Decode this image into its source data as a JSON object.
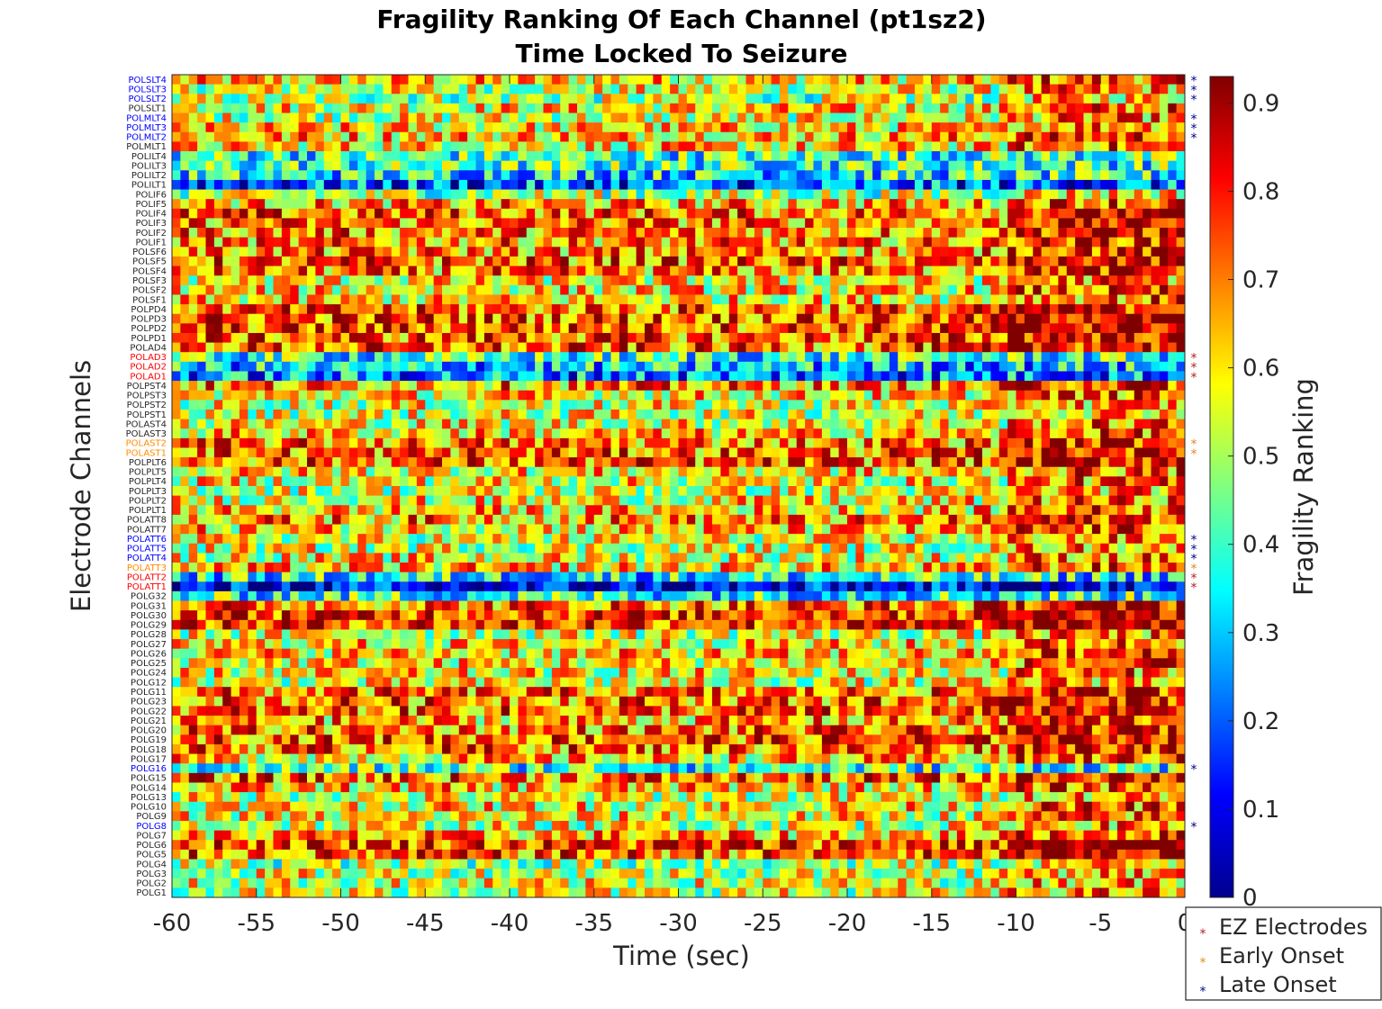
{
  "chart_data": {
    "type": "heatmap",
    "title": "Fragility Ranking Of Each Channel (pt1sz2)",
    "subtitle": "Time Locked To Seizure",
    "xlabel": "Time (sec)",
    "ylabel": "Electrode Channels",
    "xlim": [
      -60,
      0
    ],
    "xticks": [
      "-60",
      "-55",
      "-50",
      "-45",
      "-40",
      "-35",
      "-30",
      "-25",
      "-20",
      "-15",
      "-10",
      "-5",
      "0"
    ],
    "xtick_values": [
      -60,
      -55,
      -50,
      -45,
      -40,
      -35,
      -30,
      -25,
      -20,
      -15,
      -10,
      -5,
      0
    ],
    "colorbar": {
      "label": "Fragility Ranking",
      "range": [
        0,
        0.93
      ],
      "ticks": [
        "0",
        "0.1",
        "0.2",
        "0.3",
        "0.4",
        "0.5",
        "0.6",
        "0.7",
        "0.8",
        "0.9"
      ],
      "tick_values": [
        0,
        0.1,
        0.2,
        0.3,
        0.4,
        0.5,
        0.6,
        0.7,
        0.8,
        0.9
      ],
      "colormap": "jet"
    },
    "channels": [
      {
        "name": "POLSLT4",
        "group": "late"
      },
      {
        "name": "POLSLT3",
        "group": "late"
      },
      {
        "name": "POLSLT2",
        "group": "late"
      },
      {
        "name": "POLSLT1",
        "group": "none"
      },
      {
        "name": "POLMLT4",
        "group": "late"
      },
      {
        "name": "POLMLT3",
        "group": "late"
      },
      {
        "name": "POLMLT2",
        "group": "late"
      },
      {
        "name": "POLMLT1",
        "group": "none"
      },
      {
        "name": "POLILT4",
        "group": "none"
      },
      {
        "name": "POLILT3",
        "group": "none"
      },
      {
        "name": "POLILT2",
        "group": "none"
      },
      {
        "name": "POLILT1",
        "group": "none"
      },
      {
        "name": "POLIF6",
        "group": "none"
      },
      {
        "name": "POLIF5",
        "group": "none"
      },
      {
        "name": "POLIF4",
        "group": "none"
      },
      {
        "name": "POLIF3",
        "group": "none"
      },
      {
        "name": "POLIF2",
        "group": "none"
      },
      {
        "name": "POLIF1",
        "group": "none"
      },
      {
        "name": "POLSF6",
        "group": "none"
      },
      {
        "name": "POLSF5",
        "group": "none"
      },
      {
        "name": "POLSF4",
        "group": "none"
      },
      {
        "name": "POLSF3",
        "group": "none"
      },
      {
        "name": "POLSF2",
        "group": "none"
      },
      {
        "name": "POLSF1",
        "group": "none"
      },
      {
        "name": "POLPD4",
        "group": "none"
      },
      {
        "name": "POLPD3",
        "group": "none"
      },
      {
        "name": "POLPD2",
        "group": "none"
      },
      {
        "name": "POLPD1",
        "group": "none"
      },
      {
        "name": "POLAD4",
        "group": "none"
      },
      {
        "name": "POLAD3",
        "group": "ez"
      },
      {
        "name": "POLAD2",
        "group": "ez"
      },
      {
        "name": "POLAD1",
        "group": "ez"
      },
      {
        "name": "POLPST4",
        "group": "none"
      },
      {
        "name": "POLPST3",
        "group": "none"
      },
      {
        "name": "POLPST2",
        "group": "none"
      },
      {
        "name": "POLPST1",
        "group": "none"
      },
      {
        "name": "POLAST4",
        "group": "none"
      },
      {
        "name": "POLAST3",
        "group": "none"
      },
      {
        "name": "POLAST2",
        "group": "early"
      },
      {
        "name": "POLAST1",
        "group": "early"
      },
      {
        "name": "POLPLT6",
        "group": "none"
      },
      {
        "name": "POLPLT5",
        "group": "none"
      },
      {
        "name": "POLPLT4",
        "group": "none"
      },
      {
        "name": "POLPLT3",
        "group": "none"
      },
      {
        "name": "POLPLT2",
        "group": "none"
      },
      {
        "name": "POLPLT1",
        "group": "none"
      },
      {
        "name": "POLATT8",
        "group": "none"
      },
      {
        "name": "POLATT7",
        "group": "none"
      },
      {
        "name": "POLATT6",
        "group": "late"
      },
      {
        "name": "POLATT5",
        "group": "late"
      },
      {
        "name": "POLATT4",
        "group": "late"
      },
      {
        "name": "POLATT3",
        "group": "early"
      },
      {
        "name": "POLATT2",
        "group": "ez"
      },
      {
        "name": "POLATT1",
        "group": "ez"
      },
      {
        "name": "POLG32",
        "group": "none"
      },
      {
        "name": "POLG31",
        "group": "none"
      },
      {
        "name": "POLG30",
        "group": "none"
      },
      {
        "name": "POLG29",
        "group": "none"
      },
      {
        "name": "POLG28",
        "group": "none"
      },
      {
        "name": "POLG27",
        "group": "none"
      },
      {
        "name": "POLG26",
        "group": "none"
      },
      {
        "name": "POLG25",
        "group": "none"
      },
      {
        "name": "POLG24",
        "group": "none"
      },
      {
        "name": "POLG12",
        "group": "none"
      },
      {
        "name": "POLG11",
        "group": "none"
      },
      {
        "name": "POLG23",
        "group": "none"
      },
      {
        "name": "POLG22",
        "group": "none"
      },
      {
        "name": "POLG21",
        "group": "none"
      },
      {
        "name": "POLG20",
        "group": "none"
      },
      {
        "name": "POLG19",
        "group": "none"
      },
      {
        "name": "POLG18",
        "group": "none"
      },
      {
        "name": "POLG17",
        "group": "none"
      },
      {
        "name": "POLG16",
        "group": "late"
      },
      {
        "name": "POLG15",
        "group": "none"
      },
      {
        "name": "POLG14",
        "group": "none"
      },
      {
        "name": "POLG13",
        "group": "none"
      },
      {
        "name": "POLG10",
        "group": "none"
      },
      {
        "name": "POLG9",
        "group": "none"
      },
      {
        "name": "POLG8",
        "group": "late"
      },
      {
        "name": "POLG7",
        "group": "none"
      },
      {
        "name": "POLG6",
        "group": "none"
      },
      {
        "name": "POLG5",
        "group": "none"
      },
      {
        "name": "POLG4",
        "group": "none"
      },
      {
        "name": "POLG3",
        "group": "none"
      },
      {
        "name": "POLG2",
        "group": "none"
      },
      {
        "name": "POLG1",
        "group": "none"
      }
    ],
    "channel_mean_fragility": {
      "POLSLT4": 0.62,
      "POLSLT3": 0.55,
      "POLSLT2": 0.5,
      "POLSLT1": 0.6,
      "POLMLT4": 0.55,
      "POLMLT3": 0.6,
      "POLMLT2": 0.65,
      "POLMLT1": 0.6,
      "POLILT4": 0.4,
      "POLILT3": 0.4,
      "POLILT2": 0.35,
      "POLILT1": 0.2,
      "POLIF6": 0.5,
      "POLIF5": 0.65,
      "POLIF4": 0.72,
      "POLIF3": 0.7,
      "POLIF2": 0.7,
      "POLIF1": 0.68,
      "POLSF6": 0.68,
      "POLSF5": 0.72,
      "POLSF4": 0.68,
      "POLSF3": 0.58,
      "POLSF2": 0.6,
      "POLSF1": 0.6,
      "POLPD4": 0.72,
      "POLPD3": 0.75,
      "POLPD2": 0.75,
      "POLPD1": 0.73,
      "POLAD4": 0.72,
      "POLAD3": 0.38,
      "POLAD2": 0.3,
      "POLAD1": 0.25,
      "POLPST4": 0.68,
      "POLPST3": 0.6,
      "POLPST2": 0.55,
      "POLPST1": 0.55,
      "POLAST4": 0.58,
      "POLAST3": 0.62,
      "POLAST2": 0.7,
      "POLAST1": 0.72,
      "POLPLT6": 0.72,
      "POLPLT5": 0.6,
      "POLPLT4": 0.58,
      "POLPLT3": 0.55,
      "POLPLT2": 0.58,
      "POLPLT1": 0.62,
      "POLATT8": 0.68,
      "POLATT7": 0.62,
      "POLATT6": 0.55,
      "POLATT5": 0.55,
      "POLATT4": 0.58,
      "POLATT3": 0.62,
      "POLATT2": 0.35,
      "POLATT1": 0.08,
      "POLG32": 0.38,
      "POLG31": 0.72,
      "POLG30": 0.8,
      "POLG29": 0.78,
      "POLG28": 0.55,
      "POLG27": 0.6,
      "POLG26": 0.62,
      "POLG25": 0.6,
      "POLG24": 0.58,
      "POLG12": 0.55,
      "POLG11": 0.7,
      "POLG23": 0.72,
      "POLG22": 0.72,
      "POLG21": 0.65,
      "POLG20": 0.7,
      "POLG19": 0.75,
      "POLG18": 0.72,
      "POLG17": 0.62,
      "POLG16": 0.4,
      "POLG15": 0.72,
      "POLG14": 0.62,
      "POLG13": 0.55,
      "POLG10": 0.6,
      "POLG9": 0.58,
      "POLG8": 0.55,
      "POLG7": 0.65,
      "POLG6": 0.78,
      "POLG5": 0.72,
      "POLG4": 0.5,
      "POLG3": 0.55,
      "POLG2": 0.55,
      "POLG1": 0.55
    },
    "legend": {
      "placement": "bottom-right-outside",
      "entries": [
        {
          "label": "EZ Electrodes",
          "group": "ez",
          "color": "#b22222"
        },
        {
          "label": "Early Onset",
          "group": "early",
          "color": "#e08a1e"
        },
        {
          "label": "Late Onset",
          "group": "late",
          "color": "#00008b"
        }
      ]
    },
    "label_colors": {
      "none": "#262626",
      "ez": "#ff0000",
      "early": "#ff8c00",
      "late": "#0000ff"
    },
    "grid": false
  }
}
